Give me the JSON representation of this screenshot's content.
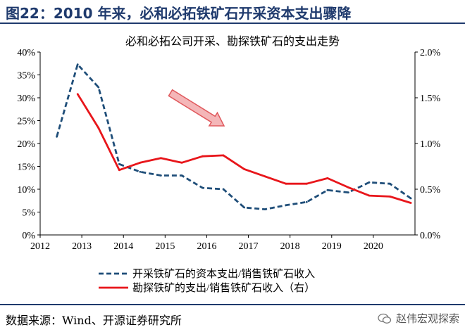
{
  "figure": {
    "title": "图22：2010 年来，必和必拓铁矿石开采资本支出骤降",
    "source": "数据来源：Wind、开源证券研究所",
    "watermark": "赵伟宏观探索"
  },
  "colors": {
    "header_blue": "#1f3a6d",
    "series_capex": "#1f4e79",
    "series_exploration": "#e8161b",
    "arrow_fill": "#f4b6b8",
    "arrow_stroke": "#e05a5e"
  },
  "chart_data": {
    "type": "line",
    "title": "必和必拓公司开采、勘探铁矿石的支出走势",
    "xlabel": "",
    "ylabel": "",
    "xlim": [
      2012,
      2021
    ],
    "x_ticks": [
      2012,
      2013,
      2014,
      2015,
      2016,
      2017,
      2018,
      2019,
      2020
    ],
    "y_left": {
      "lim": [
        0,
        40
      ],
      "ticks": [
        0,
        5,
        10,
        15,
        20,
        25,
        30,
        35,
        40
      ],
      "tick_labels": [
        "0%",
        "5%",
        "10%",
        "15%",
        "20%",
        "25%",
        "30%",
        "35%",
        "40%"
      ]
    },
    "y_right": {
      "lim": [
        0,
        2.0
      ],
      "ticks": [
        0,
        0.5,
        1.0,
        1.5,
        2.0
      ],
      "tick_labels": [
        "0.0%",
        "0.5%",
        "1.0%",
        "1.5%",
        "2.0%"
      ]
    },
    "series": [
      {
        "name": "开采铁矿石的资本支出/销售铁矿石收入",
        "axis": "left",
        "style": "dashed",
        "x": [
          2012.4,
          2012.9,
          2013.4,
          2013.9,
          2014.4,
          2014.9,
          2015.4,
          2015.9,
          2016.4,
          2016.9,
          2017.4,
          2017.9,
          2018.4,
          2018.9,
          2019.4,
          2019.9,
          2020.4,
          2020.9
        ],
        "values": [
          21.5,
          37.3,
          32.3,
          15.5,
          13.8,
          13.0,
          13.0,
          10.3,
          10.0,
          6.0,
          5.6,
          6.5,
          7.2,
          9.8,
          9.3,
          11.5,
          11.2,
          8.0
        ]
      },
      {
        "name": "勘探铁矿的支出/销售铁矿石收入（右）",
        "axis": "right",
        "style": "solid",
        "x": [
          2012.9,
          2013.4,
          2013.9,
          2014.4,
          2014.9,
          2015.4,
          2015.9,
          2016.4,
          2016.9,
          2017.4,
          2017.9,
          2018.4,
          2018.9,
          2019.4,
          2019.9,
          2020.4,
          2020.9
        ],
        "values": [
          1.54,
          1.17,
          0.71,
          0.79,
          0.84,
          0.79,
          0.86,
          0.87,
          0.72,
          0.64,
          0.56,
          0.56,
          0.62,
          0.52,
          0.43,
          0.42,
          0.35
        ]
      }
    ],
    "legend_position": "bottom-center"
  }
}
